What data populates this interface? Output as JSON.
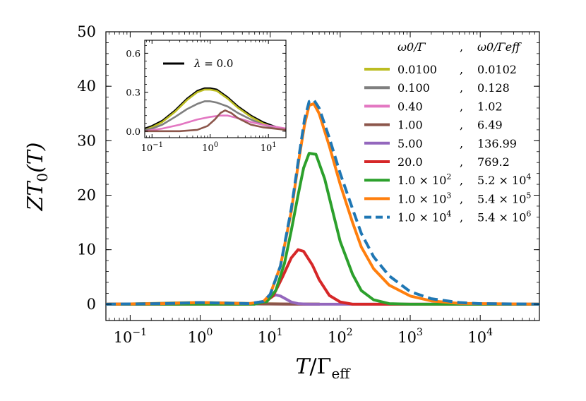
{
  "chart_data": [
    {
      "type": "line",
      "xlabel_main": "T",
      "xlabel_slash": "/",
      "xlabel_gamma": "Γ",
      "xlabel_sub": "eff",
      "ylabel_main": "ZT",
      "ylabel_sub": "0",
      "ylabel_tail": "(T)",
      "xscale": "log",
      "xlim": [
        0.045,
        70000
      ],
      "ylim": [
        -3,
        50
      ],
      "yticks": [
        0,
        10,
        20,
        30,
        40,
        50
      ],
      "ytick_labels": [
        "0",
        "10",
        "20",
        "30",
        "40",
        "50"
      ],
      "xticks": [
        0.1,
        1,
        10,
        100,
        1000,
        10000
      ],
      "xtick_labels": [
        {
          "base": "10",
          "exp": "−1"
        },
        {
          "base": "10",
          "exp": "0"
        },
        {
          "base": "10",
          "exp": "1"
        },
        {
          "base": "10",
          "exp": "2"
        },
        {
          "base": "10",
          "exp": "3"
        },
        {
          "base": "10",
          "exp": "4"
        }
      ],
      "legend": {
        "position": "right",
        "header_col1": "ω0/Γ",
        "header_sep": ",",
        "header_col2": "ω0/Γeff"
      },
      "series": [
        {
          "name": "0.0100",
          "name2": "0.0102",
          "color": "#bcbd22",
          "style": "solid",
          "x": [
            0.05,
            0.1,
            0.2,
            0.4,
            0.7,
            1.0,
            1.5,
            2.5,
            4,
            7,
            10,
            20,
            50
          ],
          "y": [
            0.02,
            0.05,
            0.12,
            0.22,
            0.29,
            0.3,
            0.28,
            0.22,
            0.16,
            0.1,
            0.07,
            0.04,
            0.01
          ]
        },
        {
          "name": "0.100",
          "name2": "0.128",
          "color": "#7f7f7f",
          "style": "solid",
          "x": [
            0.05,
            0.1,
            0.2,
            0.4,
            0.7,
            1.0,
            1.5,
            2.5,
            4,
            7,
            10,
            20,
            50
          ],
          "y": [
            0.01,
            0.04,
            0.1,
            0.18,
            0.23,
            0.24,
            0.23,
            0.19,
            0.14,
            0.09,
            0.06,
            0.03,
            0.01
          ]
        },
        {
          "name": "0.40",
          "name2": "1.02",
          "color": "#e377c2",
          "style": "solid",
          "x": [
            0.05,
            0.1,
            0.3,
            0.7,
            1.2,
            2,
            3,
            5,
            10,
            20,
            50
          ],
          "y": [
            0.0,
            0.01,
            0.05,
            0.1,
            0.12,
            0.12,
            0.1,
            0.07,
            0.04,
            0.02,
            0.0
          ]
        },
        {
          "name": "1.00",
          "name2": "6.49",
          "color": "#8c564b",
          "style": "solid",
          "x": [
            0.05,
            0.3,
            0.8,
            1.2,
            1.6,
            2.2,
            3,
            5,
            8,
            15,
            50
          ],
          "y": [
            0.0,
            0.0,
            0.02,
            0.08,
            0.14,
            0.15,
            0.12,
            0.06,
            0.03,
            0.01,
            0.0
          ]
        },
        {
          "name": "5.00",
          "name2": "136.99",
          "color": "#9467bd",
          "style": "solid",
          "x": [
            0.045,
            3,
            6,
            8,
            10,
            12,
            14,
            17,
            20,
            25,
            35,
            70000
          ],
          "y": [
            0,
            0,
            0.1,
            0.5,
            1.3,
            1.7,
            1.5,
            0.9,
            0.4,
            0.1,
            0,
            0
          ]
        },
        {
          "name": "20.0",
          "name2": "769.2",
          "color": "#d62728",
          "style": "solid",
          "x": [
            0.045,
            5,
            8,
            11,
            15,
            20,
            25,
            30,
            40,
            50,
            70,
            100,
            150,
            70000
          ],
          "y": [
            0,
            0,
            0.2,
            1.5,
            5.0,
            8.5,
            10.0,
            9.7,
            7.2,
            4.5,
            1.6,
            0.4,
            0,
            0
          ]
        },
        {
          "name": "1.0 × 10",
          "name_exp": "2",
          "name2": "5.2 × 10",
          "name2_exp": "4",
          "color": "#2ca02c",
          "style": "solid",
          "x": [
            0.045,
            6,
            9,
            12,
            16,
            20,
            25,
            30,
            36,
            45,
            60,
            80,
            100,
            150,
            200,
            300,
            500,
            1000,
            70000
          ],
          "y": [
            0,
            0,
            0.5,
            2.5,
            7.5,
            13.5,
            20,
            25,
            27.7,
            27.5,
            23,
            16.5,
            11.5,
            5.5,
            2.5,
            0.8,
            0.1,
            0,
            0
          ]
        },
        {
          "name": "1.0 × 10",
          "name_exp": "3",
          "name2": "5.4 × 10",
          "name2_exp": "5",
          "color": "#ff7f0e",
          "style": "solid",
          "x": [
            0.045,
            0.3,
            1,
            2,
            5,
            8,
            10,
            14,
            20,
            26,
            31,
            36,
            42,
            50,
            70,
            100,
            150,
            200,
            300,
            500,
            1000,
            2000,
            5000,
            70000
          ],
          "y": [
            0,
            0.1,
            0.3,
            0.2,
            0.1,
            0.5,
            1.8,
            7,
            17,
            27,
            33,
            36.5,
            36.8,
            35,
            29,
            22,
            15,
            10.5,
            6.5,
            3.5,
            1.5,
            0.6,
            0.15,
            0
          ]
        },
        {
          "name": "1.0 × 10",
          "name_exp": "4",
          "name2": "5.4 × 10",
          "name2_exp": "6",
          "color": "#1f77b4",
          "style": "dashed",
          "x": [
            0.045,
            0.3,
            1,
            2,
            5,
            8,
            10,
            14,
            20,
            26,
            31,
            36,
            42,
            50,
            70,
            100,
            150,
            200,
            300,
            500,
            1000,
            2000,
            5000,
            10000,
            70000
          ],
          "y": [
            0,
            0.1,
            0.3,
            0.2,
            0.1,
            0.5,
            1.8,
            7,
            17.5,
            27.5,
            34,
            37.2,
            37.5,
            36,
            30.5,
            24,
            17.5,
            13,
            8.7,
            5.2,
            2.3,
            1.0,
            0.3,
            0.1,
            0
          ]
        }
      ]
    },
    {
      "type": "line",
      "role": "inset",
      "xscale": "log",
      "xlim": [
        0.075,
        20
      ],
      "ylim": [
        -0.05,
        0.7
      ],
      "yticks": [
        0.0,
        0.3,
        0.6
      ],
      "ytick_labels": [
        "0.0",
        "0.3",
        "0.6"
      ],
      "xticks": [
        0.1,
        1,
        10
      ],
      "xtick_labels": [
        {
          "base": "10",
          "exp": "−1"
        },
        {
          "base": "10",
          "exp": "0"
        },
        {
          "base": "10",
          "exp": "1"
        }
      ],
      "legend": {
        "lambda_symbol": "λ",
        "lambda_text": " = 0.0",
        "position": "top-left"
      },
      "series": [
        {
          "name": "λ = 0.0",
          "color": "#000000",
          "style": "solid",
          "x": [
            0.075,
            0.1,
            0.15,
            0.25,
            0.4,
            0.6,
            0.8,
            1.0,
            1.3,
            2,
            3,
            5,
            8,
            12,
            20
          ],
          "y": [
            0.02,
            0.04,
            0.08,
            0.16,
            0.25,
            0.31,
            0.33,
            0.33,
            0.32,
            0.26,
            0.19,
            0.12,
            0.07,
            0.04,
            0.01
          ]
        },
        {
          "name": "0.0100",
          "color": "#bcbd22",
          "style": "solid",
          "x": [
            0.075,
            0.1,
            0.15,
            0.25,
            0.4,
            0.6,
            0.8,
            1.0,
            1.3,
            2,
            3,
            5,
            8,
            12,
            20
          ],
          "y": [
            0.01,
            0.03,
            0.07,
            0.15,
            0.24,
            0.3,
            0.32,
            0.32,
            0.31,
            0.25,
            0.18,
            0.11,
            0.06,
            0.03,
            0.01
          ]
        },
        {
          "name": "0.100",
          "color": "#7f7f7f",
          "style": "solid",
          "x": [
            0.075,
            0.1,
            0.15,
            0.25,
            0.4,
            0.6,
            0.8,
            1.0,
            1.3,
            2,
            3,
            5,
            8,
            12,
            20
          ],
          "y": [
            0.01,
            0.02,
            0.05,
            0.11,
            0.17,
            0.21,
            0.23,
            0.23,
            0.22,
            0.19,
            0.14,
            0.09,
            0.05,
            0.03,
            0.01
          ]
        },
        {
          "name": "0.40",
          "color": "#e377c2",
          "style": "solid",
          "x": [
            0.075,
            0.15,
            0.3,
            0.6,
            1.0,
            1.5,
            2,
            3,
            5,
            8,
            20
          ],
          "y": [
            0.0,
            0.02,
            0.05,
            0.09,
            0.11,
            0.12,
            0.12,
            0.1,
            0.07,
            0.05,
            0.02
          ]
        },
        {
          "name": "1.00",
          "color": "#8c564b",
          "style": "solid",
          "x": [
            0.075,
            0.3,
            0.6,
            0.9,
            1.2,
            1.5,
            1.8,
            2.3,
            3,
            5,
            8,
            20
          ],
          "y": [
            0.0,
            0.0,
            0.01,
            0.04,
            0.09,
            0.14,
            0.16,
            0.14,
            0.1,
            0.05,
            0.03,
            0.01
          ]
        }
      ]
    }
  ]
}
